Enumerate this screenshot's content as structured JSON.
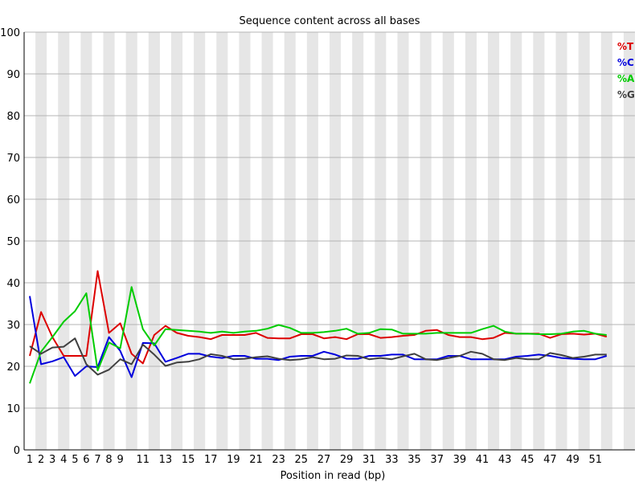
{
  "chart_data": {
    "type": "line",
    "title": "Sequence content across all bases",
    "xlabel": "Position in read (bp)",
    "ylabel": "",
    "ylim": [
      0,
      100
    ],
    "yticks": [
      0,
      10,
      20,
      30,
      40,
      50,
      60,
      70,
      80,
      90,
      100
    ],
    "x": [
      1,
      2,
      3,
      4,
      5,
      6,
      7,
      8,
      9,
      10,
      11,
      12,
      13,
      14,
      15,
      16,
      17,
      18,
      19,
      20,
      21,
      22,
      23,
      24,
      25,
      26,
      27,
      28,
      29,
      30,
      31,
      32,
      33,
      34,
      35,
      36,
      37,
      38,
      39,
      40,
      41,
      42,
      43,
      44,
      45,
      46,
      47,
      48,
      49,
      50,
      51,
      52
    ],
    "xtick_labels": [
      "1",
      "2",
      "3",
      "4",
      "5",
      "6",
      "7",
      "8",
      "9",
      "11",
      "13",
      "15",
      "17",
      "19",
      "21",
      "23",
      "25",
      "27",
      "29",
      "31",
      "33",
      "35",
      "37",
      "39",
      "41",
      "43",
      "45",
      "47",
      "49",
      "51"
    ],
    "grid": true,
    "legend_position": "top-right",
    "series": [
      {
        "name": "%T",
        "color": "#dd0000",
        "values": [
          22.5,
          33,
          27,
          22.5,
          22.5,
          22.5,
          42.8,
          28,
          30.3,
          23,
          20.7,
          27.5,
          29.7,
          28,
          27.3,
          27,
          26.5,
          27.5,
          27.5,
          27.5,
          28,
          26.8,
          26.7,
          26.7,
          27.7,
          27.7,
          26.7,
          27,
          26.5,
          27.7,
          27.7,
          26.8,
          27,
          27.3,
          27.5,
          28.5,
          28.7,
          27.5,
          27,
          27,
          26.5,
          26.8,
          28,
          27.8,
          27.8,
          27.8,
          26.8,
          27.7,
          27.8,
          27.6,
          27.8,
          27.1
        ]
      },
      {
        "name": "%C",
        "color": "#0000dd",
        "values": [
          36.8,
          20.5,
          21.2,
          22.2,
          17.7,
          20,
          19.8,
          27,
          23.7,
          17.4,
          25.6,
          25.5,
          21.1,
          22,
          23,
          23,
          22.3,
          22,
          22.5,
          22.5,
          21.8,
          21.8,
          21.5,
          22.3,
          22.5,
          22.5,
          23.5,
          22.8,
          21.8,
          21.8,
          22.5,
          22.5,
          22.8,
          22.8,
          21.7,
          21.7,
          21.7,
          22.5,
          22.5,
          21.7,
          21.7,
          21.7,
          21.7,
          22.3,
          22.5,
          22.8,
          22.5,
          22,
          21.8,
          21.7,
          21.7,
          22.5
        ]
      },
      {
        "name": "%A",
        "color": "#00cc00",
        "values": [
          15.9,
          23.5,
          27,
          30.7,
          33.2,
          37.5,
          19,
          25.7,
          24.3,
          39,
          28.9,
          25,
          28.9,
          28.7,
          28.5,
          28.3,
          28,
          28.3,
          28,
          28.3,
          28.5,
          29,
          29.9,
          29.2,
          28,
          28,
          28.2,
          28.5,
          29,
          27.8,
          28,
          28.9,
          28.8,
          27.8,
          27.8,
          27.8,
          28,
          28,
          28,
          28,
          28.9,
          29.7,
          28.3,
          27.8,
          27.8,
          27.7,
          27.7,
          27.8,
          28.3,
          28.5,
          27.8,
          27.5
        ]
      },
      {
        "name": "%G",
        "color": "#404040",
        "values": [
          24.8,
          23,
          24.5,
          24.7,
          26.7,
          20.5,
          18,
          19.2,
          21.7,
          20.5,
          25.2,
          22.8,
          20.1,
          20.9,
          21.1,
          21.7,
          22.9,
          22.5,
          21.7,
          21.8,
          22.2,
          22.4,
          21.8,
          21.5,
          21.7,
          22.2,
          21.7,
          21.8,
          22.6,
          22.5,
          21.7,
          22,
          21.7,
          22.4,
          23,
          21.7,
          21.5,
          22,
          22.5,
          23.5,
          23,
          21.7,
          21.5,
          22,
          21.7,
          21.7,
          23.2,
          22.7,
          22,
          22.3,
          22.8,
          22.8
        ]
      }
    ]
  }
}
